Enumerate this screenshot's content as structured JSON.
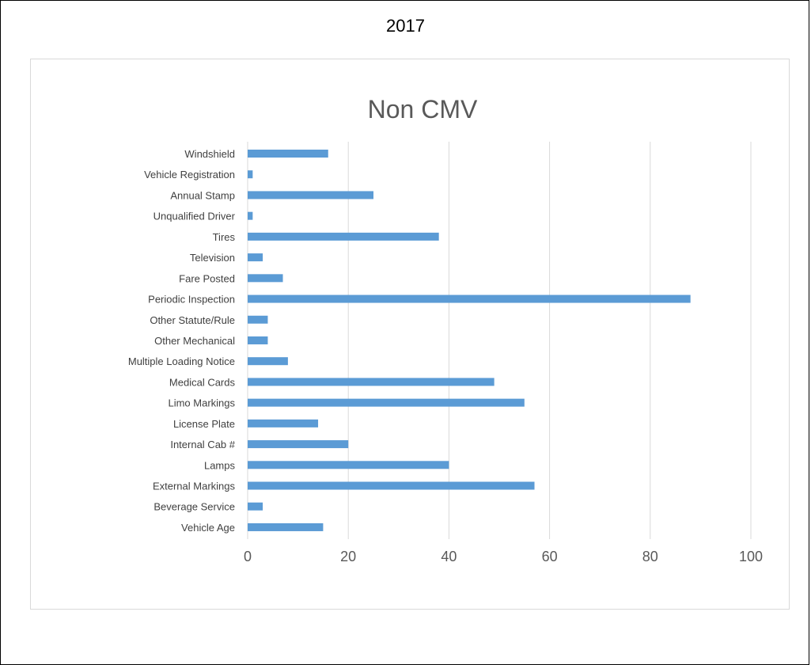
{
  "page": {
    "heading": "2017"
  },
  "colors": {
    "bar": "#5b9bd5",
    "grid": "#d9d9d9",
    "axis_text": "#595959"
  },
  "chart_data": {
    "type": "bar",
    "orientation": "horizontal",
    "title": "Non CMV",
    "xlabel": "",
    "ylabel": "",
    "xlim": [
      0,
      100
    ],
    "x_ticks": [
      0,
      20,
      40,
      60,
      80,
      100
    ],
    "grid": true,
    "legend": "none",
    "categories": [
      "Windshield",
      "Vehicle Registration",
      "Annual Stamp",
      "Unqualified Driver",
      "Tires",
      "Television",
      "Fare Posted",
      "Periodic Inspection",
      "Other Statute/Rule",
      "Other Mechanical",
      "Multiple Loading Notice",
      "Medical Cards",
      "Limo Markings",
      "License Plate",
      "Internal Cab #",
      "Lamps",
      "External Markings",
      "Beverage Service",
      "Vehicle Age"
    ],
    "values": [
      16,
      1,
      25,
      1,
      38,
      3,
      7,
      88,
      4,
      4,
      8,
      49,
      55,
      14,
      20,
      40,
      57,
      3,
      15
    ]
  }
}
